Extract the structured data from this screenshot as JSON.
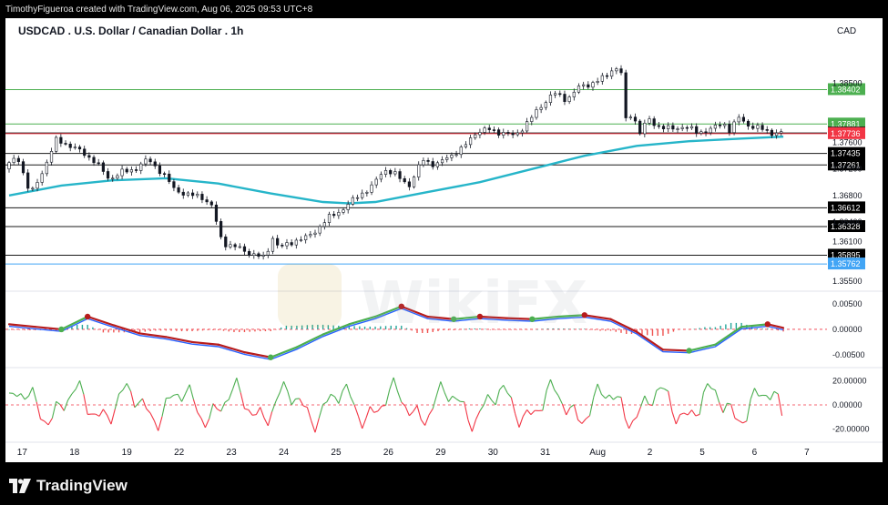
{
  "header": {
    "credit": "TimothyFigueroa created with TradingView.com, Aug 06, 2025 09:53 UTC+8"
  },
  "footer": {
    "brand": "TradingView",
    "logo_icon": "tradingview-logo-icon"
  },
  "watermark": {
    "text": "WikiFX"
  },
  "chart_data": {
    "type": "candlestick",
    "title": "USDCAD . U.S. Dollar / Canadian Dollar . 1h",
    "currency": "CAD",
    "price_axis": {
      "ylim": [
        1.3535,
        1.3907
      ],
      "tick_labels": [
        {
          "label": "1.38500",
          "value": 1.385
        },
        {
          "label": "1.37600",
          "value": 1.376
        },
        {
          "label": "1.37200",
          "value": 1.372
        },
        {
          "label": "1.36800",
          "value": 1.368
        },
        {
          "label": "1.36400",
          "value": 1.364
        },
        {
          "label": "1.36100",
          "value": 1.361
        },
        {
          "label": "1.35500",
          "value": 1.355
        }
      ]
    },
    "levels": [
      {
        "label": "1.38402",
        "value": 1.38402,
        "color": "#4caf50"
      },
      {
        "label": "1.37881",
        "value": 1.37881,
        "color": "#4caf50"
      },
      {
        "label": "1.37745",
        "value": 1.37745,
        "color": "#cfcfcf"
      },
      {
        "label": "1.37736",
        "value": 1.37736,
        "color": "#f23645"
      },
      {
        "label": "1.37435",
        "value": 1.37435,
        "color": "#cfcfcf"
      },
      {
        "label": "1.37261",
        "value": 1.37261,
        "color": "#cfcfcf"
      },
      {
        "label": "1.36612",
        "value": 1.36612,
        "color": "#cfcfcf"
      },
      {
        "label": "1.36328",
        "value": 1.36328,
        "color": "#cfcfcf"
      },
      {
        "label": "1.35895",
        "value": 1.35895,
        "color": "#cfcfcf"
      },
      {
        "label": "1.35762",
        "value": 1.35762,
        "color": "#42a5f5"
      }
    ],
    "x_ticks": [
      "17",
      "18",
      "19",
      "22",
      "23",
      "24",
      "25",
      "26",
      "29",
      "30",
      "31",
      "Aug",
      "2",
      "5",
      "6",
      "7"
    ],
    "x_tick_positions": [
      0.5,
      2.5,
      4.5,
      6.5,
      8.5,
      10.5,
      12.5,
      14.5,
      16.5,
      18.5,
      20.5,
      22.5,
      24.5,
      26.5,
      28.5,
      30.5
    ],
    "price_path": [
      [
        0.0,
        1.372
      ],
      [
        0.5,
        1.374
      ],
      [
        1.0,
        1.368
      ],
      [
        1.5,
        1.372
      ],
      [
        2.0,
        1.3765
      ],
      [
        2.5,
        1.3755
      ],
      [
        3.0,
        1.3745
      ],
      [
        3.5,
        1.373
      ],
      [
        4.0,
        1.3705
      ],
      [
        4.5,
        1.3715
      ],
      [
        5.0,
        1.372
      ],
      [
        5.5,
        1.3735
      ],
      [
        6.0,
        1.3715
      ],
      [
        6.5,
        1.369
      ],
      [
        7.0,
        1.368
      ],
      [
        7.5,
        1.368
      ],
      [
        8.0,
        1.366
      ],
      [
        8.2,
        1.362
      ],
      [
        8.5,
        1.3605
      ],
      [
        9.0,
        1.36
      ],
      [
        9.5,
        1.359
      ],
      [
        10.0,
        1.3585
      ],
      [
        10.2,
        1.362
      ],
      [
        10.5,
        1.36
      ],
      [
        11.0,
        1.361
      ],
      [
        11.5,
        1.3615
      ],
      [
        12.0,
        1.363
      ],
      [
        12.5,
        1.365
      ],
      [
        13.0,
        1.366
      ],
      [
        13.5,
        1.368
      ],
      [
        14.0,
        1.369
      ],
      [
        14.5,
        1.372
      ],
      [
        15.0,
        1.371
      ],
      [
        15.5,
        1.3695
      ],
      [
        16.0,
        1.3735
      ],
      [
        16.5,
        1.3725
      ],
      [
        17.0,
        1.374
      ],
      [
        17.5,
        1.375
      ],
      [
        18.0,
        1.3775
      ],
      [
        18.5,
        1.378
      ],
      [
        19.0,
        1.3775
      ],
      [
        19.5,
        1.377
      ],
      [
        20.0,
        1.379
      ],
      [
        20.5,
        1.3815
      ],
      [
        21.0,
        1.3835
      ],
      [
        21.5,
        1.3825
      ],
      [
        22.0,
        1.3845
      ],
      [
        22.5,
        1.385
      ],
      [
        23.0,
        1.386
      ],
      [
        23.3,
        1.3875
      ],
      [
        23.6,
        1.3865
      ],
      [
        23.7,
        1.379
      ],
      [
        24.0,
        1.3805
      ],
      [
        24.3,
        1.3775
      ],
      [
        24.6,
        1.3795
      ],
      [
        25.0,
        1.3785
      ],
      [
        25.5,
        1.378
      ],
      [
        26.0,
        1.3785
      ],
      [
        26.5,
        1.3775
      ],
      [
        27.0,
        1.378
      ],
      [
        27.5,
        1.379
      ],
      [
        27.8,
        1.3775
      ],
      [
        28.0,
        1.38
      ],
      [
        28.5,
        1.3785
      ],
      [
        29.0,
        1.378
      ],
      [
        29.3,
        1.3775
      ],
      [
        29.6,
        1.3774
      ]
    ],
    "sma_path": [
      [
        0.0,
        1.368
      ],
      [
        2.0,
        1.3695
      ],
      [
        4.0,
        1.3703
      ],
      [
        6.0,
        1.3706
      ],
      [
        8.0,
        1.3698
      ],
      [
        10.0,
        1.3683
      ],
      [
        12.0,
        1.367
      ],
      [
        13.0,
        1.3668
      ],
      [
        14.0,
        1.367
      ],
      [
        16.0,
        1.3685
      ],
      [
        18.0,
        1.37
      ],
      [
        20.0,
        1.372
      ],
      [
        22.0,
        1.374
      ],
      [
        24.0,
        1.3755
      ],
      [
        26.0,
        1.3762
      ],
      [
        28.0,
        1.3766
      ],
      [
        29.6,
        1.3769
      ]
    ],
    "macd_axis": {
      "ylim": [
        -0.0068,
        0.0075
      ],
      "tick_labels": [
        {
          "label": "0.00500",
          "value": 0.005
        },
        {
          "label": "0.00000",
          "value": 0.0
        },
        {
          "label": "-0.00500",
          "value": -0.005
        }
      ]
    },
    "macd_signal_path": [
      [
        0.0,
        0.001
      ],
      [
        1.0,
        0.0005
      ],
      [
        2.0,
        0.0
      ],
      [
        3.0,
        0.0025
      ],
      [
        4.0,
        0.0008
      ],
      [
        5.0,
        -0.0008
      ],
      [
        6.0,
        -0.0015
      ],
      [
        7.0,
        -0.0025
      ],
      [
        8.0,
        -0.003
      ],
      [
        9.0,
        -0.0045
      ],
      [
        10.0,
        -0.0055
      ],
      [
        11.0,
        -0.0035
      ],
      [
        12.0,
        -0.001
      ],
      [
        13.0,
        0.001
      ],
      [
        14.0,
        0.0025
      ],
      [
        15.0,
        0.0045
      ],
      [
        16.0,
        0.0025
      ],
      [
        17.0,
        0.002
      ],
      [
        18.0,
        0.0025
      ],
      [
        19.0,
        0.0022
      ],
      [
        20.0,
        0.002
      ],
      [
        21.0,
        0.0025
      ],
      [
        22.0,
        0.0028
      ],
      [
        23.0,
        0.002
      ],
      [
        24.0,
        -0.0005
      ],
      [
        25.0,
        -0.004
      ],
      [
        26.0,
        -0.0042
      ],
      [
        27.0,
        -0.003
      ],
      [
        28.0,
        0.0005
      ],
      [
        29.0,
        0.001
      ],
      [
        29.6,
        0.0003
      ]
    ],
    "macd_histogram_sign": "mixed",
    "oscillator_axis": {
      "ylim": [
        -28,
        28
      ],
      "tick_labels": [
        {
          "label": "20.00000",
          "value": 20
        },
        {
          "label": "0.00000",
          "value": 0
        },
        {
          "label": "-20.00000",
          "value": -20
        }
      ]
    },
    "oscillator_colors": {
      "above": "#4caf50",
      "below": "#f23645"
    }
  }
}
